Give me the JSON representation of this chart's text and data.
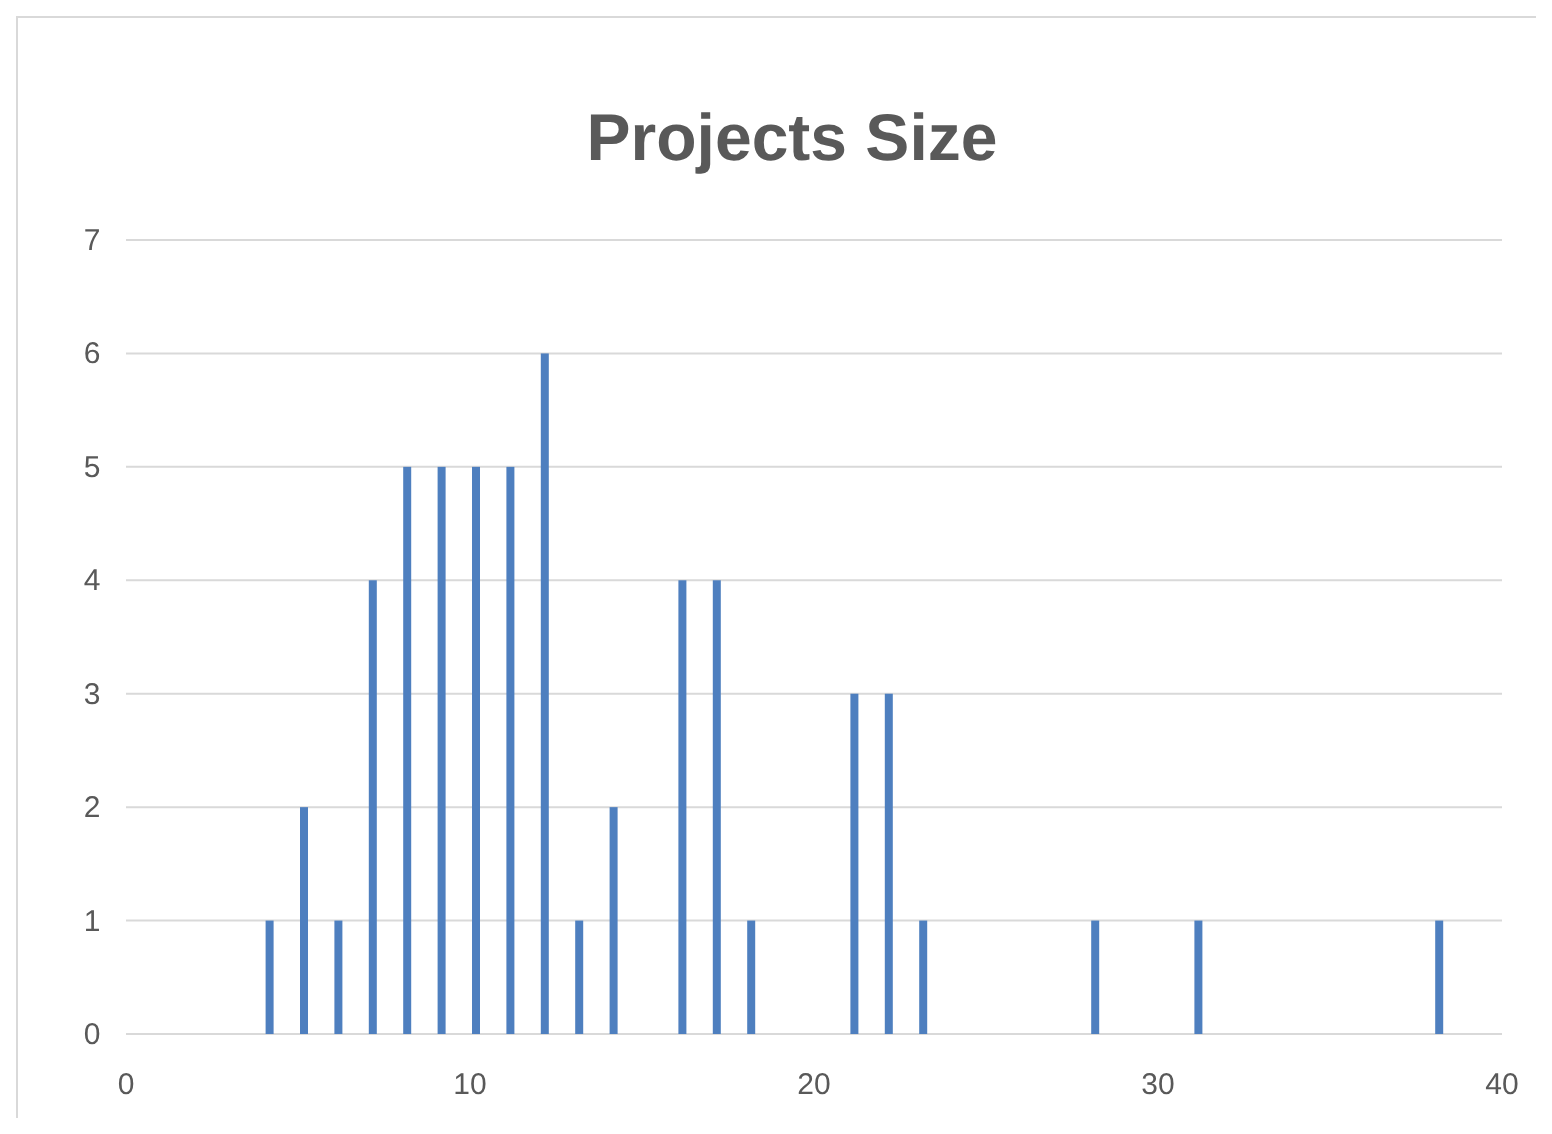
{
  "chart_data": {
    "type": "bar",
    "title": "Projects Size",
    "x": [
      4,
      5,
      6,
      7,
      8,
      9,
      10,
      11,
      12,
      13,
      14,
      16,
      17,
      18,
      21,
      22,
      23,
      28,
      31,
      38
    ],
    "values": [
      1,
      2,
      1,
      4,
      5,
      5,
      5,
      5,
      6,
      1,
      2,
      4,
      4,
      1,
      3,
      3,
      1,
      1,
      1,
      1
    ],
    "color": "#4e7fbf",
    "xlim": [
      0,
      40
    ],
    "xticks": [
      0,
      10,
      20,
      30,
      40
    ],
    "ylim": [
      0,
      7
    ],
    "yticks": [
      0,
      1,
      2,
      3,
      4,
      5,
      6,
      7
    ],
    "grid": "y"
  }
}
